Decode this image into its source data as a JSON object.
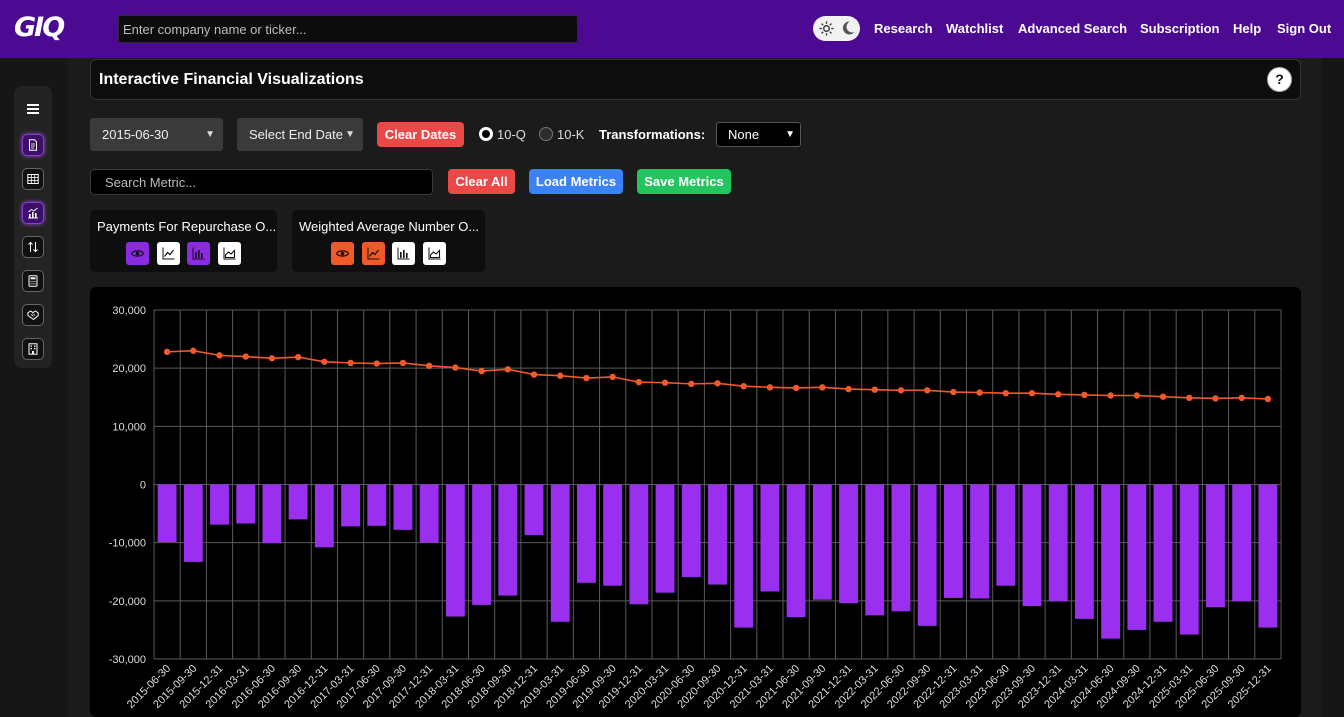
{
  "header": {
    "logo": "GIQ",
    "search_placeholder": "Enter company name or ticker...",
    "nav": [
      "Research",
      "Watchlist",
      "Advanced Search",
      "Subscription",
      "Help",
      "Sign Out"
    ]
  },
  "sidebar": {
    "icons": [
      "menu-icon",
      "document-icon",
      "table-icon",
      "chart-icon",
      "transfer-icon",
      "calculator-icon",
      "handshake-icon",
      "building-icon"
    ]
  },
  "page": {
    "title": "Interactive Financial Visualizations",
    "help": "?"
  },
  "controls": {
    "start_date": "2015-06-30",
    "end_date": "Select End Date",
    "clear_dates": "Clear Dates",
    "radio_10q": "10-Q",
    "radio_10k": "10-K",
    "selected_period": "10-Q",
    "transformations_label": "Transformations:",
    "transformation_value": "None",
    "metric_search_placeholder": "Search Metric...",
    "clear_all": "Clear All",
    "load_metrics": "Load Metrics",
    "save_metrics": "Save Metrics"
  },
  "metrics": [
    {
      "name": "Payments For Repurchase O...",
      "color": "#8a2be2",
      "active_type": "bar"
    },
    {
      "name": "Weighted Average Number O...",
      "color": "#f05a2b",
      "active_type": "line"
    }
  ],
  "colors": {
    "header": "#4b0a91",
    "bar": "#9b2ff0",
    "line": "#f05a2b"
  },
  "chart_data": {
    "type": "bar",
    "ylim": [
      -30000,
      30000
    ],
    "yticks": [
      "30,000",
      "20,000",
      "10,000",
      "0",
      "-10,000",
      "-20,000",
      "-30,000"
    ],
    "grid": true,
    "categories": [
      "2015-06-30",
      "2015-09-30",
      "2015-12-31",
      "2016-03-31",
      "2016-06-30",
      "2016-09-30",
      "2016-12-31",
      "2017-03-31",
      "2017-06-30",
      "2017-09-30",
      "2017-12-31",
      "2018-03-31",
      "2018-06-30",
      "2018-09-30",
      "2018-12-31",
      "2019-03-31",
      "2019-06-30",
      "2019-09-30",
      "2019-12-31",
      "2020-03-31",
      "2020-06-30",
      "2020-09-30",
      "2020-12-31",
      "2021-03-31",
      "2021-06-30",
      "2021-09-30",
      "2021-12-31",
      "2022-03-31",
      "2022-06-30",
      "2022-09-30",
      "2022-12-31",
      "2023-03-31",
      "2023-06-30",
      "2023-09-30",
      "2023-12-31",
      "2024-03-31",
      "2024-06-30",
      "2024-09-30",
      "2024-12-31",
      "2025-03-31",
      "2025-06-30",
      "2025-09-30",
      "2025-12-31"
    ],
    "series": [
      {
        "type": "bar",
        "values": [
          -9900,
          -13300,
          -6900,
          -6700,
          -10100,
          -6000,
          -10800,
          -7200,
          -7100,
          -7800,
          -10000,
          -22700,
          -20700,
          -19100,
          -8700,
          -23600,
          -16900,
          -17400,
          -20600,
          -18600,
          -15900,
          -17200,
          -24600,
          -18400,
          -22800,
          -19800,
          -20400,
          -22500,
          -21800,
          -24300,
          -19500,
          -19600,
          -17400,
          -20900,
          -20100,
          -23100,
          -26500,
          -25000,
          -23600,
          -25800,
          -21100,
          -20100,
          -24600
        ]
      },
      {
        "type": "line",
        "values": [
          22800,
          23000,
          22200,
          22000,
          21700,
          21900,
          21100,
          20900,
          20800,
          20900,
          20400,
          20100,
          19500,
          19800,
          18900,
          18700,
          18300,
          18500,
          17600,
          17500,
          17300,
          17400,
          16900,
          16700,
          16600,
          16700,
          16400,
          16300,
          16200,
          16200,
          15900,
          15800,
          15700,
          15700,
          15500,
          15400,
          15300,
          15300,
          15100,
          14900,
          14800,
          14900,
          14700
        ]
      }
    ]
  }
}
